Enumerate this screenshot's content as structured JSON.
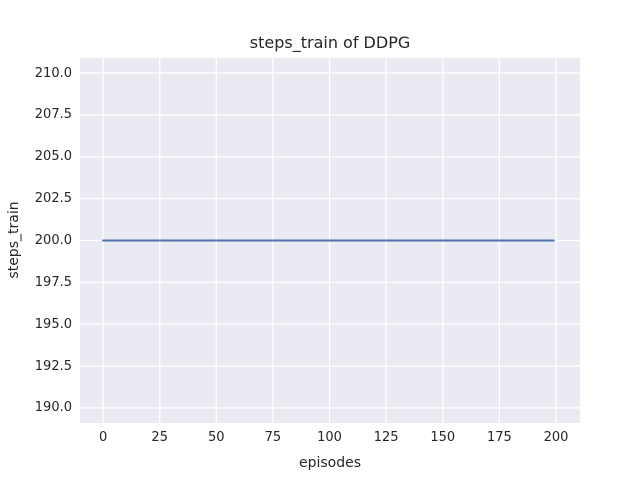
{
  "chart_data": {
    "type": "line",
    "title": "steps_train of DDPG",
    "xlabel": "episodes",
    "ylabel": "steps_train",
    "xlim": [
      -10.2,
      210.6
    ],
    "ylim": [
      189.1,
      210.9
    ],
    "xticks": [
      0,
      25,
      50,
      75,
      100,
      125,
      150,
      175,
      200
    ],
    "xtick_labels": [
      "0",
      "25",
      "50",
      "75",
      "100",
      "125",
      "150",
      "175",
      "200"
    ],
    "yticks": [
      190.0,
      192.5,
      195.0,
      197.5,
      200.0,
      202.5,
      205.0,
      207.5,
      210.0
    ],
    "ytick_labels": [
      "190.0",
      "192.5",
      "195.0",
      "197.5",
      "200.0",
      "202.5",
      "205.0",
      "207.5",
      "210.0"
    ],
    "grid": true,
    "legend_position": "none",
    "series": [
      {
        "name": "steps_train",
        "color": "#4C72B0",
        "constant_value": 200,
        "x": [
          0,
          199
        ],
        "y": [
          200,
          200
        ]
      }
    ],
    "colors": {
      "figure_background": "#FFFFFF",
      "axes_background": "#EAEAF2",
      "grid": "#FFFFFF",
      "text": "#262626",
      "line": "#4C72B0"
    }
  }
}
